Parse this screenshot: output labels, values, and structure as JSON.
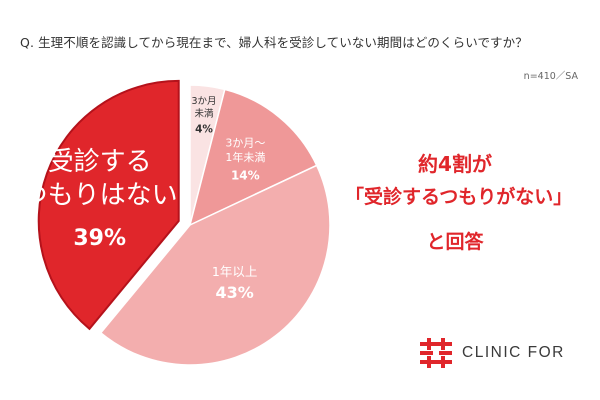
{
  "question": "Q. 生理不順を認識してから現在まで、婦人科を受診していない期間はどのくらいですか？",
  "sample_note": "n=410／SA",
  "chart_data": {
    "type": "pie",
    "title": "Q. 生理不順を認識してから現在まで、婦人科を受診していない期間はどのくらいですか？",
    "slices": [
      {
        "label": [
          "受診する",
          "つもりはない"
        ],
        "value": 39,
        "value_label": "39%",
        "color": "#e0262b",
        "exploded": true
      },
      {
        "label": [
          "3か月",
          "未満"
        ],
        "value": 4,
        "value_label": "4%",
        "color": "#fae3e3"
      },
      {
        "label": [
          "3か月～",
          "1年未満"
        ],
        "value": 14,
        "value_label": "14%",
        "color": "#ef9898"
      },
      {
        "label": [
          "1年以上"
        ],
        "value": 43,
        "value_label": "43%",
        "color": "#f3aeae"
      }
    ]
  },
  "callout": {
    "line1": "約4割が",
    "line2": "「受診するつもりがない」",
    "line3": "と回答"
  },
  "logo": {
    "text": "CLINIC FOR",
    "color": "#e0262b"
  }
}
